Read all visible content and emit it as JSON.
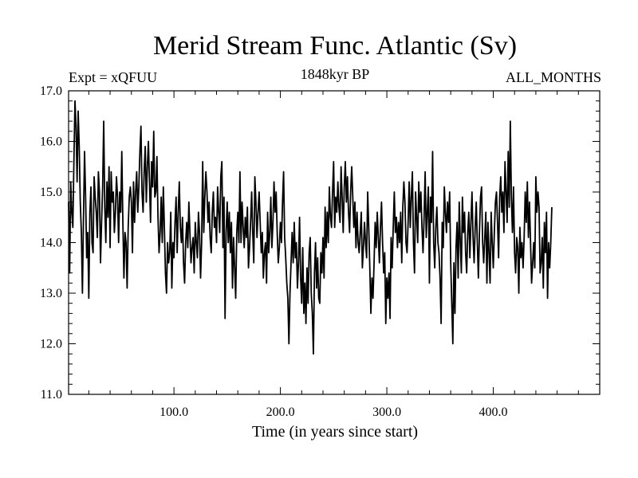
{
  "chart_data": {
    "type": "line",
    "title": "Merid Stream Func. Atlantic (Sv)",
    "subtitle_left": "Expt = xQFUU",
    "subtitle_center": "1848kyr BP",
    "subtitle_right": "ALL_MONTHS",
    "xlabel": "Time (in years since start)",
    "ylabel": "",
    "xlim": [
      1,
      500
    ],
    "ylim": [
      11.0,
      17.0
    ],
    "x_ticks": [
      100,
      200,
      300,
      400
    ],
    "x_tick_labels": [
      "100.0",
      "200.0",
      "300.0",
      "400.0"
    ],
    "y_ticks": [
      11,
      12,
      13,
      14,
      15,
      16,
      17
    ],
    "y_tick_labels": [
      "11.0",
      "12.0",
      "13.0",
      "14.0",
      "15.0",
      "16.0",
      "17.0"
    ],
    "series": [
      {
        "name": "Merid Stream Func. Atlantic",
        "x_start": 1,
        "x_step": 1,
        "values": [
          14.8,
          13.4,
          15.2,
          14.6,
          14.3,
          15.6,
          16.8,
          16.3,
          15.2,
          16.6,
          15.9,
          14.8,
          14.2,
          13.0,
          14.5,
          15.8,
          14.9,
          13.7,
          14.2,
          12.9,
          14.6,
          15.1,
          14.0,
          13.8,
          15.3,
          14.9,
          14.6,
          14.1,
          15.4,
          15.0,
          13.6,
          14.4,
          15.1,
          16.4,
          14.7,
          14.0,
          15.2,
          14.5,
          15.5,
          13.9,
          15.4,
          14.8,
          15.0,
          14.2,
          14.6,
          15.3,
          14.9,
          14.0,
          15.0,
          14.6,
          15.8,
          14.4,
          13.3,
          14.2,
          14.0,
          13.1,
          14.3,
          14.9,
          15.1,
          14.8,
          13.8,
          15.2,
          14.4,
          15.0,
          15.4,
          14.6,
          15.1,
          15.8,
          16.3,
          15.0,
          14.6,
          15.4,
          15.9,
          14.8,
          15.5,
          16.0,
          15.2,
          14.4,
          15.6,
          15.1,
          16.2,
          14.9,
          15.0,
          15.7,
          14.5,
          13.8,
          14.2,
          14.9,
          14.0,
          15.1,
          14.3,
          13.4,
          13.0,
          14.0,
          13.6,
          13.8,
          14.6,
          13.1,
          14.0,
          13.7,
          14.4,
          14.9,
          13.8,
          14.6,
          15.2,
          14.3,
          14.0,
          14.5,
          13.6,
          13.2,
          14.0,
          14.4,
          13.9,
          14.8,
          14.2,
          13.6,
          13.9,
          14.1,
          13.4,
          14.4,
          14.0,
          13.7,
          14.6,
          14.2,
          13.3,
          14.0,
          15.6,
          14.2,
          14.9,
          15.4,
          15.0,
          14.4,
          14.8,
          14.1,
          13.8,
          14.6,
          15.0,
          14.3,
          14.5,
          14.0,
          15.1,
          14.6,
          14.2,
          15.3,
          15.6,
          13.9,
          14.9,
          12.5,
          14.2,
          14.8,
          14.0,
          14.6,
          13.8,
          14.4,
          13.1,
          14.1,
          13.5,
          12.9,
          14.2,
          14.6,
          14.0,
          15.4,
          14.0,
          14.8,
          14.3,
          13.9,
          14.5,
          14.1,
          14.7,
          13.5,
          13.9,
          14.4,
          15.0,
          14.2,
          13.6,
          15.3,
          14.8,
          14.1,
          14.6,
          15.0,
          14.4,
          13.8,
          14.2,
          13.3,
          13.8,
          14.0,
          13.2,
          14.6,
          13.8,
          14.2,
          14.9,
          13.9,
          14.4,
          15.2,
          14.6,
          15.0,
          14.2,
          13.6,
          13.9,
          14.4,
          14.0,
          14.8,
          15.4,
          14.1,
          13.7,
          13.2,
          12.9,
          12.0,
          13.0,
          13.6,
          14.2,
          13.6,
          14.4,
          13.7,
          14.0,
          13.1,
          13.6,
          14.5,
          13.3,
          12.8,
          13.9,
          12.6,
          13.2,
          12.4,
          13.5,
          12.8,
          13.8,
          14.1,
          13.0,
          12.6,
          11.8,
          13.4,
          14.0,
          13.1,
          13.7,
          12.9,
          12.8,
          13.8,
          13.4,
          14.1,
          13.3,
          14.7,
          13.9,
          14.6,
          14.0,
          15.1,
          14.5,
          14.3,
          15.0,
          15.6,
          14.3,
          14.9,
          14.6,
          15.2,
          14.7,
          14.4,
          15.5,
          14.9,
          14.2,
          15.1,
          15.6,
          14.8,
          15.3,
          14.6,
          14.2,
          15.0,
          15.5,
          14.9,
          14.3,
          14.8,
          13.9,
          14.6,
          14.0,
          13.8,
          14.2,
          14.6,
          13.5,
          13.9,
          14.4,
          14.0,
          13.7,
          15.0,
          14.3,
          13.5,
          12.6,
          13.3,
          12.9,
          13.6,
          14.4,
          13.9,
          14.6,
          14.1,
          13.6,
          14.3,
          14.8,
          14.0,
          13.4,
          13.8,
          12.4,
          13.3,
          12.9,
          13.4,
          12.5,
          14.1,
          13.5,
          14.3,
          15.0,
          14.2,
          14.5,
          13.9,
          14.4,
          14.0,
          14.6,
          13.6,
          14.7,
          15.2,
          14.8,
          14.0,
          13.8,
          14.4,
          15.2,
          14.3,
          14.9,
          15.4,
          14.0,
          13.4,
          15.0,
          14.5,
          14.0,
          15.2,
          14.6,
          15.0,
          14.3,
          13.8,
          14.5,
          15.4,
          14.1,
          14.6,
          15.1,
          13.2,
          14.9,
          14.4,
          15.8,
          14.0,
          13.5,
          14.3,
          14.7,
          14.0,
          13.8,
          13.3,
          12.4,
          14.4,
          13.9,
          15.1,
          14.6,
          14.2,
          14.8,
          14.4,
          15.0,
          13.6,
          12.8,
          12.0,
          13.6,
          12.6,
          13.9,
          14.4,
          13.3,
          14.8,
          14.0,
          13.4,
          14.9,
          14.2,
          14.6,
          13.8,
          13.4,
          14.2,
          14.6,
          13.7,
          14.4,
          15.0,
          14.1,
          13.6,
          14.3,
          14.8,
          14.0,
          13.3,
          14.2,
          14.9,
          15.1,
          14.0,
          13.6,
          14.1,
          14.6,
          13.2,
          14.4,
          13.8,
          13.2,
          14.6,
          14.0,
          13.5,
          14.2,
          14.8,
          15.0,
          14.4,
          13.7,
          14.9,
          15.3,
          14.6,
          15.0,
          14.2,
          15.6,
          15.0,
          14.4,
          15.8,
          14.7,
          16.4,
          14.9,
          14.2,
          15.1,
          13.8,
          13.4,
          14.1,
          13.9,
          13.0,
          14.3,
          13.7,
          14.0,
          13.5,
          14.1,
          15.0,
          14.4,
          15.2,
          14.1,
          14.8,
          14.0,
          13.2,
          13.6,
          14.0,
          13.5,
          15.3,
          14.6,
          15.0,
          14.7,
          13.4,
          13.6,
          14.1,
          13.1,
          14.4,
          13.8,
          14.6,
          12.9,
          14.0,
          13.5,
          14.0,
          14.7
        ]
      }
    ]
  }
}
